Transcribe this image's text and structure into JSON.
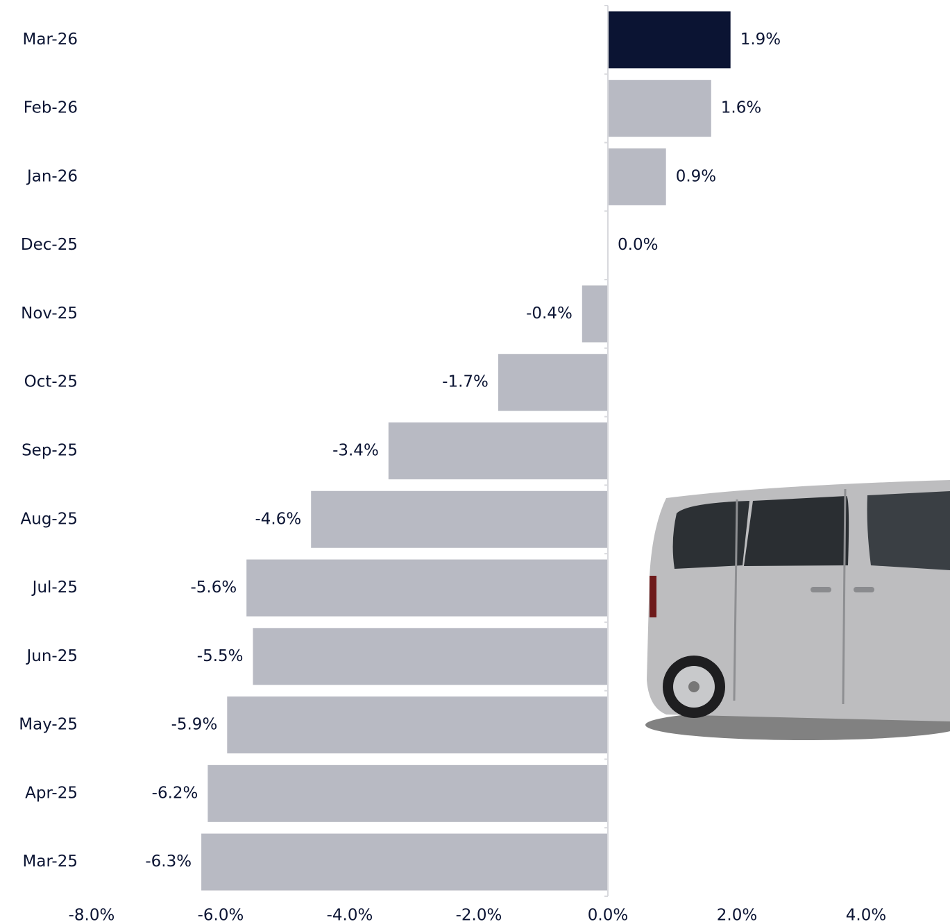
{
  "chart_data": {
    "type": "hbar",
    "categories": [
      "Mar-26",
      "Feb-26",
      "Jan-26",
      "Dec-25",
      "Nov-25",
      "Oct-25",
      "Sep-25",
      "Aug-25",
      "Jul-25",
      "Jun-25",
      "May-25",
      "Apr-25",
      "Mar-25"
    ],
    "values": [
      1.9,
      1.6,
      0.9,
      0.0,
      -0.4,
      -1.7,
      -3.4,
      -4.6,
      -5.6,
      -5.5,
      -5.9,
      -6.2,
      -6.3
    ],
    "value_labels": [
      "1.9%",
      "1.6%",
      "0.9%",
      "0.0%",
      "-0.4%",
      "-1.7%",
      "-3.4%",
      "-4.6%",
      "-5.6%",
      "-5.5%",
      "-5.9%",
      "-6.2%",
      "-6.3%"
    ],
    "colors": [
      "#0b1433",
      "#b8bac3",
      "#b8bac3",
      "#b8bac3",
      "#b8bac3",
      "#b8bac3",
      "#b8bac3",
      "#b8bac3",
      "#b8bac3",
      "#b8bac3",
      "#b8bac3",
      "#b8bac3",
      "#b8bac3"
    ],
    "xlim": [
      -8,
      5.3
    ],
    "xticks": [
      {
        "value": -8,
        "label": "-8.0%"
      },
      {
        "value": -6,
        "label": "-6.0%"
      },
      {
        "value": -4,
        "label": "-4.0%"
      },
      {
        "value": -2,
        "label": "-2.0%"
      },
      {
        "value": 0,
        "label": "0.0%"
      },
      {
        "value": 2,
        "label": "2.0%"
      },
      {
        "value": 4,
        "label": "4.0%"
      }
    ],
    "grid": false
  }
}
